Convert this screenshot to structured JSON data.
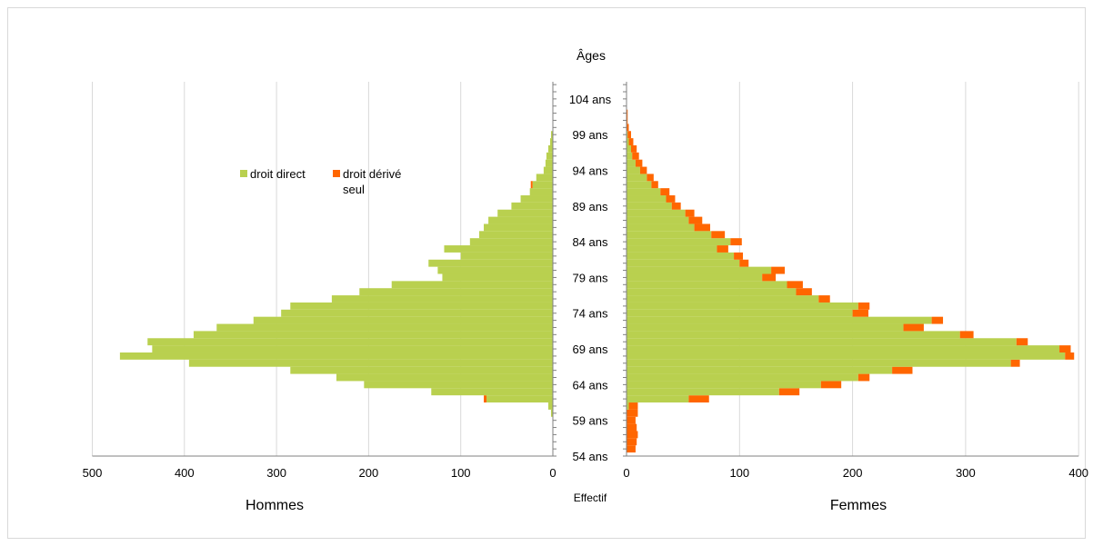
{
  "chart_data": {
    "type": "bar",
    "subtype": "population-pyramid",
    "title": "",
    "y_axis_title": "Âges",
    "x_axis_title": "Effectif",
    "left_panel_title": "Hommes",
    "right_panel_title": "Femmes",
    "legend": {
      "placement": "upper-left",
      "entries": [
        {
          "name": "droit direct",
          "color": "#b9d04f"
        },
        {
          "name": "droit dérivé seul",
          "line1": "droit dérivé",
          "line2": "seul",
          "color": "#ff6600"
        }
      ]
    },
    "colors": {
      "direct": "#b9d04f",
      "derived": "#ff6600",
      "grid": "#d9d9d9"
    },
    "age_range": [
      54,
      106
    ],
    "age_ticks": [
      104,
      99,
      94,
      89,
      84,
      79,
      74,
      69,
      64,
      59,
      54
    ],
    "age_tick_suffix": " ans",
    "men_axis": {
      "xlim": [
        0,
        500
      ],
      "ticks": [
        500,
        400,
        300,
        200,
        100,
        0
      ]
    },
    "women_axis": {
      "xlim": [
        0,
        400
      ],
      "ticks": [
        0,
        100,
        200,
        300,
        400
      ]
    },
    "men": {
      "ages": [
        60,
        61,
        62,
        63,
        64,
        65,
        66,
        67,
        68,
        69,
        70,
        71,
        72,
        73,
        74,
        75,
        76,
        77,
        78,
        79,
        80,
        81,
        82,
        83,
        84,
        85,
        86,
        87,
        88,
        89,
        90,
        91,
        92,
        93,
        94,
        95,
        96,
        97,
        98,
        99
      ],
      "direct": [
        2,
        5,
        72,
        132,
        205,
        235,
        285,
        395,
        470,
        435,
        440,
        390,
        365,
        325,
        295,
        285,
        240,
        210,
        175,
        120,
        125,
        135,
        100,
        118,
        90,
        80,
        75,
        70,
        60,
        45,
        35,
        25,
        22,
        18,
        10,
        8,
        7,
        5,
        3,
        2
      ],
      "derived": [
        0,
        0,
        3,
        0,
        0,
        0,
        0,
        0,
        0,
        0,
        0,
        0,
        0,
        0,
        0,
        0,
        0,
        0,
        0,
        0,
        0,
        0,
        0,
        0,
        0,
        0,
        0,
        0,
        0,
        0,
        0,
        0,
        2,
        0,
        0,
        0,
        0,
        0,
        0,
        0
      ]
    },
    "women": {
      "ages": [
        55,
        56,
        57,
        58,
        59,
        60,
        61,
        62,
        63,
        64,
        65,
        66,
        67,
        68,
        69,
        70,
        71,
        72,
        73,
        74,
        75,
        76,
        77,
        78,
        79,
        80,
        81,
        82,
        83,
        84,
        85,
        86,
        87,
        88,
        89,
        90,
        91,
        92,
        93,
        94,
        95,
        96,
        97,
        98,
        99,
        100,
        101,
        102
      ],
      "direct": [
        0,
        0,
        0,
        0,
        0,
        0,
        2,
        55,
        135,
        172,
        205,
        235,
        340,
        388,
        383,
        345,
        295,
        245,
        270,
        200,
        205,
        170,
        150,
        142,
        120,
        128,
        100,
        95,
        80,
        92,
        75,
        60,
        55,
        52,
        40,
        35,
        30,
        22,
        18,
        12,
        8,
        5,
        4,
        2,
        1,
        0,
        0,
        0
      ],
      "derived": [
        8,
        9,
        10,
        9,
        8,
        10,
        8,
        18,
        18,
        18,
        10,
        18,
        8,
        8,
        10,
        10,
        12,
        18,
        10,
        14,
        10,
        10,
        14,
        14,
        12,
        12,
        8,
        8,
        10,
        10,
        12,
        14,
        12,
        8,
        8,
        8,
        8,
        6,
        6,
        6,
        6,
        6,
        5,
        4,
        3,
        2,
        1,
        1
      ]
    }
  }
}
